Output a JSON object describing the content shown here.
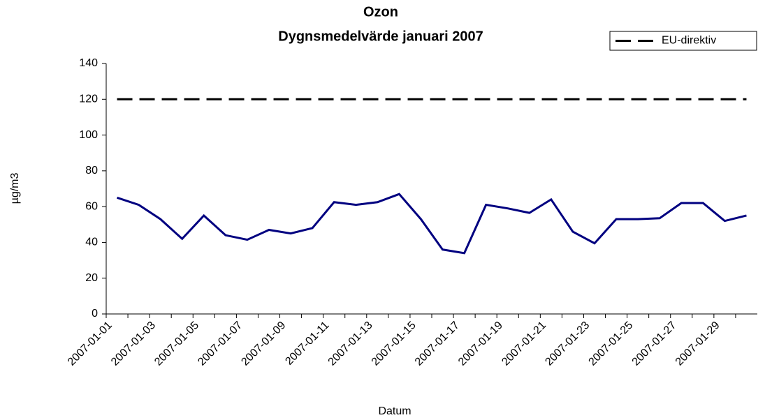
{
  "chart_data": {
    "type": "line",
    "title": "Ozon",
    "subtitle": "Dygnsmedelvärde januari 2007",
    "x_label": "Datum",
    "y_label": "µg/m3",
    "categories": [
      "2007-01-01",
      null,
      "2007-01-03",
      null,
      "2007-01-05",
      null,
      "2007-01-07",
      null,
      "2007-01-09",
      null,
      "2007-01-11",
      null,
      "2007-01-13",
      null,
      "2007-01-15",
      null,
      "2007-01-17",
      null,
      "2007-01-19",
      null,
      "2007-01-21",
      null,
      "2007-01-23",
      null,
      "2007-01-25",
      null,
      "2007-01-27",
      null,
      "2007-01-29",
      null
    ],
    "series": [
      {
        "name": "Ozon",
        "color": "#000080",
        "values": [
          65,
          61,
          53,
          42,
          55,
          44,
          41.5,
          47,
          45,
          48,
          62.5,
          61,
          62.5,
          67,
          53,
          36,
          34,
          61,
          59,
          56.5,
          64,
          46,
          39.5,
          53,
          53,
          53.5,
          62,
          62,
          52,
          55
        ]
      },
      {
        "name": "EU-direktiv",
        "color": "#000000",
        "dashed": true,
        "values": [
          120,
          120,
          120,
          120,
          120,
          120,
          120,
          120,
          120,
          120,
          120,
          120,
          120,
          120,
          120,
          120,
          120,
          120,
          120,
          120,
          120,
          120,
          120,
          120,
          120,
          120,
          120,
          120,
          120,
          120
        ]
      }
    ],
    "ylim": [
      0,
      140
    ],
    "yticks": [
      0,
      20,
      40,
      60,
      80,
      100,
      120,
      140
    ],
    "grid": false,
    "legend": "top-right",
    "legend_series": [
      1
    ]
  }
}
